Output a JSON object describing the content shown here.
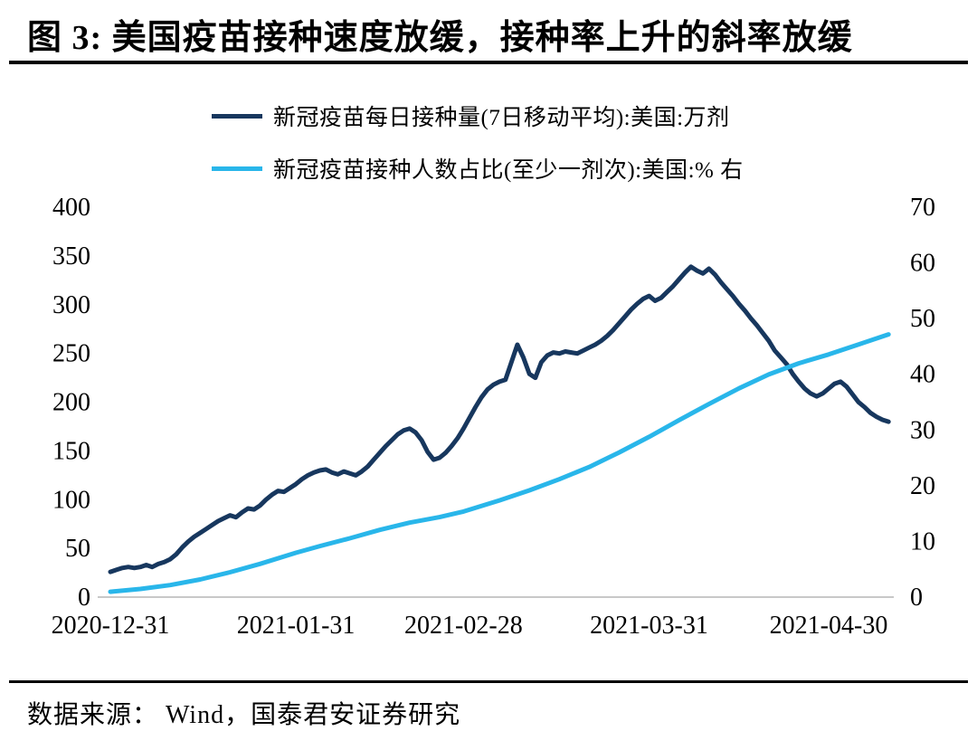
{
  "figure": {
    "title": "图 3:  美国疫苗接种速度放缓，接种率上升的斜率放缓",
    "source": "数据来源： Wind，国泰君安证券研究"
  },
  "chart_data": {
    "type": "line",
    "title": "美国疫苗接种速度放缓，接种率上升的斜率放缓",
    "legend_position": "top",
    "grid": false,
    "x_tick_labels": [
      "2020-12-31",
      "2021-01-31",
      "2021-02-28",
      "2021-03-31",
      "2021-04-30"
    ],
    "x_tick_days": [
      0,
      31,
      59,
      90,
      120
    ],
    "x_domain_days": [
      0,
      130
    ],
    "left_axis": {
      "ticks": [
        0,
        50,
        100,
        150,
        200,
        250,
        300,
        350,
        400
      ],
      "range": [
        0,
        400
      ]
    },
    "right_axis": {
      "ticks": [
        0,
        10,
        20,
        30,
        40,
        50,
        60,
        70
      ],
      "range": [
        0,
        70
      ]
    },
    "series": [
      {
        "name": "新冠疫苗每日接种量(7日移动平均):美国:万剂",
        "axis": "left",
        "color": "#17375e",
        "points": [
          [
            0,
            25
          ],
          [
            1,
            27
          ],
          [
            2,
            29
          ],
          [
            3,
            30
          ],
          [
            4,
            29
          ],
          [
            5,
            30
          ],
          [
            6,
            32
          ],
          [
            7,
            30
          ],
          [
            8,
            33
          ],
          [
            9,
            35
          ],
          [
            10,
            38
          ],
          [
            11,
            43
          ],
          [
            12,
            50
          ],
          [
            13,
            56
          ],
          [
            14,
            61
          ],
          [
            15,
            65
          ],
          [
            16,
            69
          ],
          [
            17,
            73
          ],
          [
            18,
            77
          ],
          [
            19,
            80
          ],
          [
            20,
            83
          ],
          [
            21,
            81
          ],
          [
            22,
            86
          ],
          [
            23,
            90
          ],
          [
            24,
            89
          ],
          [
            25,
            93
          ],
          [
            26,
            99
          ],
          [
            27,
            104
          ],
          [
            28,
            108
          ],
          [
            29,
            107
          ],
          [
            30,
            111
          ],
          [
            31,
            115
          ],
          [
            32,
            120
          ],
          [
            33,
            124
          ],
          [
            34,
            127
          ],
          [
            35,
            129
          ],
          [
            36,
            130
          ],
          [
            37,
            127
          ],
          [
            38,
            125
          ],
          [
            39,
            128
          ],
          [
            40,
            126
          ],
          [
            41,
            124
          ],
          [
            42,
            128
          ],
          [
            43,
            133
          ],
          [
            44,
            140
          ],
          [
            45,
            147
          ],
          [
            46,
            154
          ],
          [
            47,
            160
          ],
          [
            48,
            166
          ],
          [
            49,
            170
          ],
          [
            50,
            172
          ],
          [
            51,
            168
          ],
          [
            52,
            160
          ],
          [
            53,
            148
          ],
          [
            54,
            140
          ],
          [
            55,
            142
          ],
          [
            56,
            147
          ],
          [
            57,
            154
          ],
          [
            58,
            162
          ],
          [
            59,
            172
          ],
          [
            60,
            183
          ],
          [
            61,
            194
          ],
          [
            62,
            204
          ],
          [
            63,
            212
          ],
          [
            64,
            217
          ],
          [
            65,
            220
          ],
          [
            66,
            222
          ],
          [
            67,
            240
          ],
          [
            68,
            258
          ],
          [
            69,
            245
          ],
          [
            70,
            228
          ],
          [
            71,
            224
          ],
          [
            72,
            240
          ],
          [
            73,
            247
          ],
          [
            74,
            250
          ],
          [
            75,
            249
          ],
          [
            76,
            251
          ],
          [
            77,
            250
          ],
          [
            78,
            249
          ],
          [
            79,
            252
          ],
          [
            80,
            255
          ],
          [
            81,
            258
          ],
          [
            82,
            262
          ],
          [
            83,
            267
          ],
          [
            84,
            273
          ],
          [
            85,
            280
          ],
          [
            86,
            287
          ],
          [
            87,
            294
          ],
          [
            88,
            300
          ],
          [
            89,
            305
          ],
          [
            90,
            308
          ],
          [
            91,
            303
          ],
          [
            92,
            306
          ],
          [
            93,
            312
          ],
          [
            94,
            318
          ],
          [
            95,
            325
          ],
          [
            96,
            332
          ],
          [
            97,
            338
          ],
          [
            98,
            334
          ],
          [
            99,
            331
          ],
          [
            100,
            336
          ],
          [
            101,
            330
          ],
          [
            102,
            322
          ],
          [
            103,
            315
          ],
          [
            104,
            308
          ],
          [
            105,
            300
          ],
          [
            106,
            293
          ],
          [
            107,
            285
          ],
          [
            108,
            278
          ],
          [
            109,
            270
          ],
          [
            110,
            262
          ],
          [
            111,
            252
          ],
          [
            112,
            245
          ],
          [
            113,
            238
          ],
          [
            114,
            228
          ],
          [
            115,
            220
          ],
          [
            116,
            213
          ],
          [
            117,
            208
          ],
          [
            118,
            205
          ],
          [
            119,
            208
          ],
          [
            120,
            213
          ],
          [
            121,
            218
          ],
          [
            122,
            220
          ],
          [
            123,
            215
          ],
          [
            124,
            207
          ],
          [
            125,
            199
          ],
          [
            126,
            194
          ],
          [
            127,
            188
          ],
          [
            128,
            184
          ],
          [
            129,
            181
          ],
          [
            130,
            179
          ]
        ]
      },
      {
        "name": "新冠疫苗接种人数占比(至少一剂次):美国:% 右",
        "axis": "right",
        "color": "#29b6ea",
        "points": [
          [
            0,
            0.8
          ],
          [
            5,
            1.3
          ],
          [
            10,
            2.0
          ],
          [
            15,
            3.0
          ],
          [
            20,
            4.3
          ],
          [
            25,
            5.8
          ],
          [
            31,
            7.8
          ],
          [
            35,
            9.0
          ],
          [
            40,
            10.4
          ],
          [
            45,
            11.9
          ],
          [
            50,
            13.2
          ],
          [
            55,
            14.2
          ],
          [
            59,
            15.2
          ],
          [
            65,
            17.2
          ],
          [
            70,
            19.0
          ],
          [
            75,
            21.0
          ],
          [
            80,
            23.2
          ],
          [
            85,
            25.8
          ],
          [
            90,
            28.6
          ],
          [
            95,
            31.6
          ],
          [
            100,
            34.5
          ],
          [
            105,
            37.3
          ],
          [
            110,
            39.8
          ],
          [
            115,
            41.8
          ],
          [
            120,
            43.4
          ],
          [
            125,
            45.2
          ],
          [
            130,
            47.0
          ]
        ]
      }
    ]
  }
}
